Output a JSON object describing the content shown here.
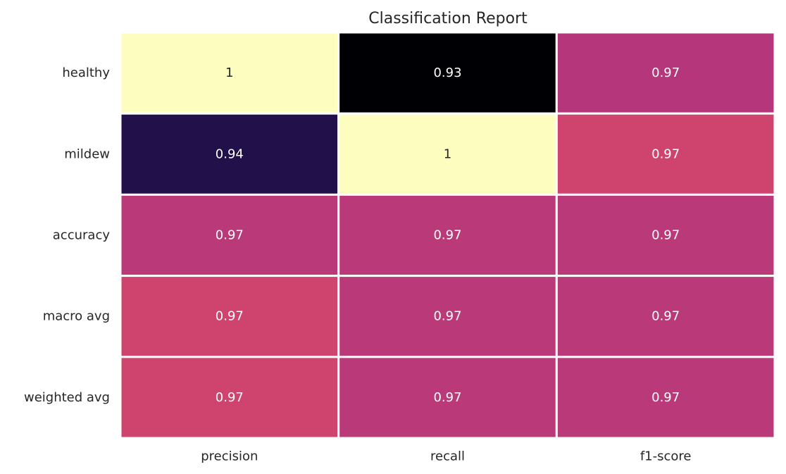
{
  "chart_data": {
    "type": "heatmap",
    "title": "Classification Report",
    "xlabel": "",
    "ylabel": "",
    "columns": [
      "precision",
      "recall",
      "f1-score"
    ],
    "rows": [
      "healthy",
      "mildew",
      "accuracy",
      "macro avg",
      "weighted avg"
    ],
    "values": [
      [
        1.0,
        0.93,
        0.965
      ],
      [
        0.94,
        1.0,
        0.97
      ],
      [
        0.966,
        0.966,
        0.966
      ],
      [
        0.97,
        0.966,
        0.966
      ],
      [
        0.97,
        0.966,
        0.966
      ]
    ],
    "annotations": [
      [
        "1",
        "0.93",
        "0.97"
      ],
      [
        "0.94",
        "1",
        "0.97"
      ],
      [
        "0.97",
        "0.97",
        "0.97"
      ],
      [
        "0.97",
        "0.97",
        "0.97"
      ],
      [
        "0.97",
        "0.97",
        "0.97"
      ]
    ],
    "colormap": "magma",
    "colorbar": false,
    "grid": false,
    "cell_border_color": "#ffffff"
  }
}
